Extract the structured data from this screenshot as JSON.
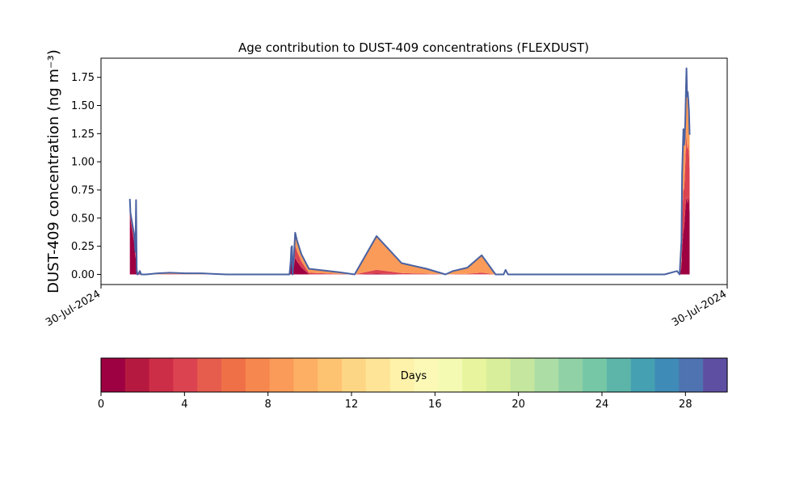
{
  "chart_data": [
    {
      "type": "area",
      "title": "Age contribution to DUST-409 concentrations (FLEXDUST)",
      "ylabel": "DUST-409 concentration (ng m⁻³)",
      "xlabel": "",
      "x_tick_labels": [
        "30-Jul-2024",
        "30-Jul-2024"
      ],
      "y_ticks": [
        "0.00",
        "0.25",
        "0.50",
        "0.75",
        "1.00",
        "1.25",
        "1.50",
        "1.75"
      ],
      "ylim": [
        -0.09,
        1.92
      ],
      "xlim": [
        0,
        1
      ],
      "grid": false,
      "line_color": "#4a62a2",
      "total_concentration": {
        "x": [
          0.046,
          0.047,
          0.049,
          0.053,
          0.055,
          0.056,
          0.057,
          0.058,
          0.059,
          0.06,
          0.062,
          0.064,
          0.066,
          0.072,
          0.09,
          0.11,
          0.135,
          0.16,
          0.2,
          0.25,
          0.3,
          0.301,
          0.303,
          0.304,
          0.305,
          0.306,
          0.308,
          0.31,
          0.313,
          0.32,
          0.332,
          0.38,
          0.405,
          0.44,
          0.48,
          0.52,
          0.55,
          0.562,
          0.585,
          0.608,
          0.63,
          0.643,
          0.646,
          0.648,
          0.65,
          0.7,
          0.8,
          0.9,
          0.92,
          0.924,
          0.927,
          0.928,
          0.93,
          0.931,
          0.932,
          0.933,
          0.934,
          0.935,
          0.936,
          0.937,
          0.938,
          0.939,
          0.94
        ],
        "y": [
          0.67,
          0.55,
          0.48,
          0.35,
          0.2,
          0.66,
          0.05,
          0.0,
          0.0,
          0.01,
          0.03,
          0.0,
          0.0,
          0.0,
          0.01,
          0.015,
          0.01,
          0.01,
          0.0,
          0.0,
          0.0,
          0.0,
          0.12,
          0.24,
          0.25,
          0.0,
          0.15,
          0.37,
          0.3,
          0.18,
          0.05,
          0.02,
          0.0,
          0.34,
          0.1,
          0.05,
          0.0,
          0.03,
          0.06,
          0.17,
          0.0,
          0.0,
          0.04,
          0.02,
          0.0,
          0.0,
          0.0,
          0.0,
          0.03,
          0.0,
          0.3,
          0.9,
          1.29,
          1.15,
          1.2,
          1.36,
          1.62,
          1.83,
          1.58,
          1.62,
          1.55,
          1.45,
          1.24
        ]
      },
      "age_fractions": [
        {
          "age_days": 0,
          "values": [
            0.92,
            0.9,
            0.85,
            0.8,
            0.7,
            0.8,
            0.3,
            0,
            0,
            0.2,
            0.2,
            0,
            0,
            0,
            0.05,
            0.05,
            0.05,
            0.05,
            0,
            0,
            0,
            0,
            0.5,
            0.55,
            0.55,
            0,
            0.45,
            0.4,
            0.38,
            0.35,
            0.05,
            0.02,
            0,
            0.02,
            0.02,
            0.02,
            0,
            0.01,
            0.01,
            0.01,
            0,
            0,
            0,
            0,
            0,
            0,
            0,
            0,
            0,
            0,
            0.2,
            0.25,
            0.3,
            0.35,
            0.4,
            0.42,
            0.4,
            0.38,
            0.4,
            0.42,
            0.43,
            0.45,
            0.45
          ]
        },
        {
          "age_days": 4,
          "values": [
            0.06,
            0.07,
            0.1,
            0.12,
            0.2,
            0.12,
            0.4,
            0,
            0,
            0.4,
            0.4,
            0,
            0,
            0,
            0.15,
            0.15,
            0.15,
            0.15,
            0,
            0,
            0,
            0,
            0.25,
            0.25,
            0.25,
            0,
            0.25,
            0.3,
            0.3,
            0.3,
            0.25,
            0.18,
            0,
            0.1,
            0.1,
            0.1,
            0,
            0.08,
            0.08,
            0.08,
            0,
            0,
            0,
            0,
            0,
            0,
            0,
            0,
            0,
            0,
            0.2,
            0.3,
            0.3,
            0.3,
            0.3,
            0.3,
            0.3,
            0.32,
            0.3,
            0.3,
            0.3,
            0.3,
            0.3
          ]
        },
        {
          "age_days": 8,
          "values": [
            0.02,
            0.03,
            0.05,
            0.08,
            0.1,
            0.08,
            0.3,
            0,
            0,
            0.4,
            0.4,
            0,
            0,
            0,
            0.8,
            0.8,
            0.8,
            0.8,
            0,
            0,
            0,
            0,
            0.25,
            0.2,
            0.2,
            0,
            0.3,
            0.3,
            0.32,
            0.35,
            0.7,
            0.8,
            0,
            0.88,
            0.88,
            0.88,
            0,
            0.91,
            0.91,
            0.91,
            0,
            0,
            0,
            0,
            0,
            0,
            0,
            0,
            0,
            0,
            0.6,
            0.45,
            0.4,
            0.35,
            0.3,
            0.28,
            0.3,
            0.3,
            0.3,
            0.28,
            0.27,
            0.25,
            0.25
          ]
        }
      ]
    },
    {
      "type": "colorbar",
      "label": "Days",
      "range": [
        0,
        30
      ],
      "ticks": [
        "0",
        "4",
        "8",
        "12",
        "16",
        "20",
        "24",
        "28"
      ],
      "colors": [
        "#9e0142",
        "#b6193f",
        "#cd2e47",
        "#dc4350",
        "#e65c4d",
        "#ef7047",
        "#f6874f",
        "#fa9b59",
        "#fdb063",
        "#fec371",
        "#fdd685",
        "#fee497",
        "#fef1a9",
        "#fcf9b7",
        "#f4fab2",
        "#e8f59e",
        "#d8ee9b",
        "#c4e69e",
        "#abdda4",
        "#90d1a5",
        "#76c7a5",
        "#5db5aa",
        "#45a0b2",
        "#3f8bb7",
        "#4f72b0",
        "#5e4fa2"
      ]
    }
  ]
}
